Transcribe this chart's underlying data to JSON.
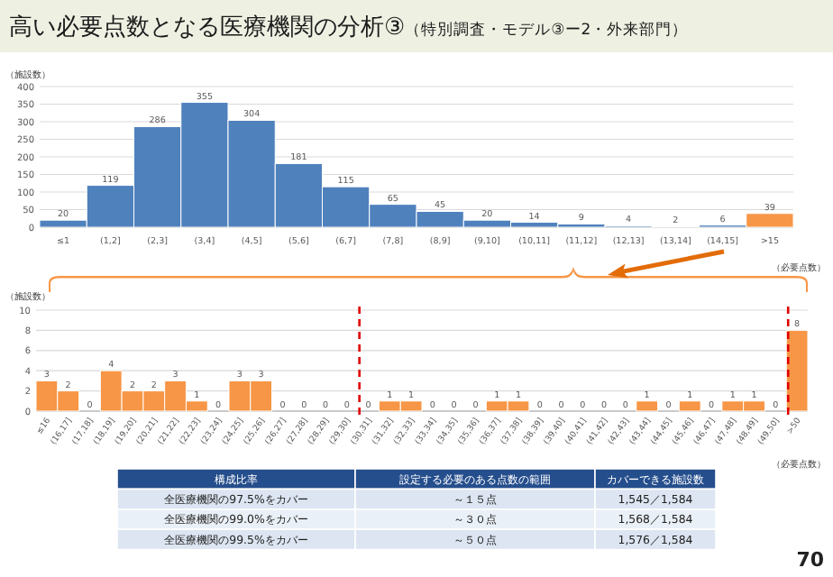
{
  "chart_data": [
    {
      "type": "bar",
      "title": "高い必要点数となる医療機関の分析③",
      "subtitle": "（特別調査・モデル③ー2・外来部門）",
      "ylabel": "（施設数）",
      "xlabel": "（必要点数）",
      "categories": [
        "≤1",
        "(1,2]",
        "(2,3]",
        "(3,4]",
        "(4,5]",
        "(5,6]",
        "(6,7]",
        "(7,8]",
        "(8,9]",
        "(9,10]",
        "(10,11]",
        "(11,12]",
        "(12,13]",
        "(13,14]",
        "(14,15]",
        ">15"
      ],
      "values": [
        20,
        119,
        286,
        355,
        304,
        181,
        115,
        65,
        45,
        20,
        14,
        9,
        4,
        2,
        6,
        39
      ],
      "colors": [
        "#4f81bd",
        "#4f81bd",
        "#4f81bd",
        "#4f81bd",
        "#4f81bd",
        "#4f81bd",
        "#4f81bd",
        "#4f81bd",
        "#4f81bd",
        "#4f81bd",
        "#4f81bd",
        "#4f81bd",
        "#4f81bd",
        "#4f81bd",
        "#4f81bd",
        "#f79646"
      ],
      "ylim": [
        0,
        400
      ],
      "yticks": [
        0,
        50,
        100,
        150,
        200,
        250,
        300,
        350,
        400
      ],
      "grid": "y",
      "data_labels": true
    },
    {
      "type": "bar",
      "ylabel": "（施設数）",
      "xlabel": "（必要点数）",
      "categories": [
        "≤16",
        "(16,17]",
        "(17,18]",
        "(18,19]",
        "(19,20]",
        "(20,21]",
        "(21,22]",
        "(22,23]",
        "(23,24]",
        "(24,25]",
        "(25,26]",
        "(26,27]",
        "(27,28]",
        "(28,29]",
        "(29,30]",
        "(30,31]",
        "(31,32]",
        "(32,33]",
        "(33,34]",
        "(34,35]",
        "(35,36]",
        "(36,37]",
        "(37,38]",
        "(38,39]",
        "(39,40]",
        "(40,41]",
        "(41,42]",
        "(42,43]",
        "(43,44]",
        "(44,45]",
        "(45,46]",
        "(46,47]",
        "(47,48]",
        "(48,49]",
        "(49,50]",
        ">50"
      ],
      "values": [
        3,
        2,
        0,
        4,
        2,
        2,
        3,
        1,
        0,
        3,
        3,
        0,
        0,
        0,
        0,
        0,
        1,
        1,
        0,
        0,
        0,
        1,
        1,
        0,
        0,
        0,
        0,
        0,
        1,
        0,
        1,
        0,
        1,
        1,
        0,
        8
      ],
      "color": "#f79646",
      "ylim": [
        0,
        10
      ],
      "yticks": [
        0,
        2,
        4,
        6,
        8,
        10
      ],
      "grid": "y",
      "data_labels": true,
      "ref_lines": [
        {
          "axis": "x",
          "value": "(30,31]",
          "color": "#e00000",
          "line_style": "dashed"
        },
        {
          "axis": "x",
          "value": ">50",
          "color": "#e00000",
          "line_style": "dashed"
        }
      ]
    },
    {
      "type": "other",
      "annotations": [
        "構成比率",
        "設定する必要のある点数の範囲",
        "カバーできる施設数",
        "全医療機関の97.5%をカバー",
        "～１５点",
        "1,545／1,584",
        "全医療機関の99.0%をカバー",
        "～３０点",
        "1,568／1,584",
        "全医療機関の99.5%をカバー",
        "～５０点",
        "1,576／1,584",
        "70"
      ]
    }
  ]
}
